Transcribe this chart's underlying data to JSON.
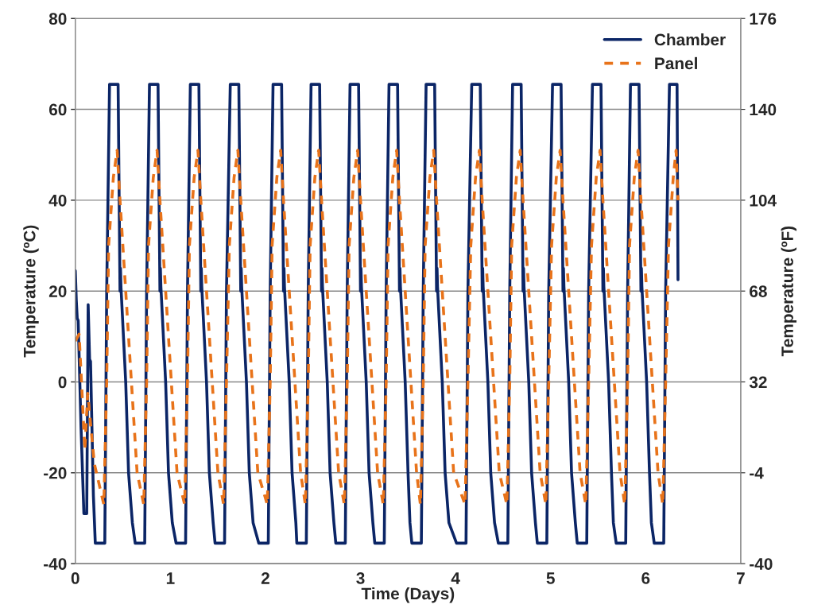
{
  "chart_data": {
    "type": "line",
    "xlabel": "Time (Days)",
    "ylabel": "Temperature (ºC)",
    "y2label": "Temperature (ºF)",
    "xlim": [
      0,
      7
    ],
    "xticks": [
      0,
      1,
      2,
      3,
      4,
      5,
      6,
      7
    ],
    "ylim": [
      -40,
      80
    ],
    "yticks": [
      -40,
      -20,
      0,
      20,
      40,
      60,
      80
    ],
    "y2lim": [
      -40,
      176
    ],
    "y2ticks": [
      -40,
      -4,
      32,
      68,
      104,
      140,
      176
    ],
    "grid": "y",
    "legend": "top right",
    "series": [
      {
        "name": "Chamber",
        "color": "#0b2566",
        "line_style": "solid",
        "x": [
          0,
          0.01,
          0.02,
          0.03,
          0.06,
          0.09,
          0.12,
          0.135,
          0.15,
          0.16,
          0.19,
          0.21,
          0.31,
          0.33,
          0.36,
          0.45,
          0.47,
          0.475,
          0.48,
          0.53,
          0.56,
          0.6,
          0.63,
          0.73,
          0.75,
          0.78,
          0.87,
          0.89,
          0.895,
          0.9,
          0.95,
          0.98,
          1.02,
          1.06,
          1.16,
          1.18,
          1.21,
          1.3,
          1.32,
          1.325,
          1.33,
          1.38,
          1.41,
          1.45,
          1.47,
          1.57,
          1.59,
          1.63,
          1.72,
          1.74,
          1.745,
          1.75,
          1.8,
          1.83,
          1.87,
          1.93,
          2.03,
          2.05,
          2.08,
          2.17,
          2.19,
          2.195,
          2.2,
          2.25,
          2.28,
          2.32,
          2.33,
          2.43,
          2.45,
          2.48,
          2.57,
          2.59,
          2.595,
          2.6,
          2.65,
          2.68,
          2.72,
          2.74,
          2.84,
          2.86,
          2.89,
          2.98,
          3.0,
          3.005,
          3.01,
          3.06,
          3.09,
          3.13,
          3.15,
          3.25,
          3.27,
          3.3,
          3.39,
          3.41,
          3.415,
          3.42,
          3.47,
          3.5,
          3.52,
          3.54,
          3.64,
          3.66,
          3.69,
          3.78,
          3.8,
          3.805,
          3.81,
          3.86,
          3.89,
          3.93,
          4.01,
          4.11,
          4.13,
          4.17,
          4.26,
          4.28,
          4.285,
          4.29,
          4.34,
          4.37,
          4.41,
          4.45,
          4.55,
          4.57,
          4.6,
          4.69,
          4.71,
          4.715,
          4.72,
          4.77,
          4.8,
          4.84,
          4.86,
          4.96,
          4.98,
          5.02,
          5.11,
          5.13,
          5.135,
          5.14,
          5.19,
          5.22,
          5.26,
          5.28,
          5.38,
          5.4,
          5.44,
          5.53,
          5.55,
          5.555,
          5.56,
          5.61,
          5.64,
          5.66,
          5.69,
          5.79,
          5.81,
          5.84,
          5.93,
          5.95,
          5.955,
          5.96,
          6.01,
          6.04,
          6.06,
          6.09,
          6.19,
          6.21,
          6.25,
          6.33,
          6.34
        ],
        "values": [
          24.5,
          18,
          14,
          13.5,
          -10,
          -29,
          -29,
          17,
          5,
          4.5,
          -25,
          -35.5,
          -35.5,
          20,
          65.5,
          65.5,
          20,
          25,
          21,
          0,
          -20,
          -31,
          -35.5,
          -35.5,
          20,
          65.5,
          65.5,
          20,
          25,
          21,
          0,
          -20,
          -31,
          -35.5,
          -35.5,
          20,
          65.5,
          65.5,
          20,
          25,
          21,
          0,
          -20,
          -31,
          -35.5,
          -35.5,
          20,
          65.5,
          65.5,
          20,
          25,
          21,
          0,
          -20,
          -31,
          -35.5,
          -35.5,
          20,
          65.5,
          65.5,
          20,
          25,
          21,
          0,
          -20,
          -31,
          -35.5,
          -35.5,
          20,
          65.5,
          65.5,
          20,
          25,
          21,
          0,
          -20,
          -31,
          -35.5,
          -35.5,
          20,
          65.5,
          65.5,
          20,
          25,
          21,
          0,
          -20,
          -31,
          -35.5,
          -35.5,
          20,
          65.5,
          65.5,
          20,
          25,
          21,
          0,
          -20,
          -31,
          -35.5,
          -35.5,
          20,
          65.5,
          65.5,
          20,
          25,
          21,
          0,
          -20,
          -31,
          -35.5,
          -35.5,
          20,
          65.5,
          65.5,
          20,
          25,
          21,
          0,
          -20,
          -31,
          -35.5,
          -35.5,
          20,
          65.5,
          65.5,
          20,
          25,
          21,
          0,
          -20,
          -31,
          -35.5,
          -35.5,
          20,
          65.5,
          65.5,
          20,
          25,
          21,
          0,
          -20,
          -31,
          -35.5,
          -35.5,
          20,
          65.5,
          65.5,
          20,
          25,
          21,
          0,
          -20,
          -31,
          -35.5,
          -35.5,
          20,
          65.5,
          65.5,
          20,
          25,
          21,
          0,
          -20,
          -31,
          -35.5,
          -35.5,
          20,
          65.5,
          65.5,
          22.5
        ]
      },
      {
        "name": "Panel",
        "color": "#e8731a",
        "line_style": "dashed",
        "x": [
          0,
          0.04,
          0.1,
          0.13,
          0.2,
          0.3,
          0.33,
          0.35,
          0.4,
          0.44,
          0.47,
          0.53,
          0.59,
          0.65,
          0.72,
          0.75,
          0.77,
          0.82,
          0.86,
          0.89,
          0.95,
          1.01,
          1.07,
          1.15,
          1.18,
          1.2,
          1.25,
          1.29,
          1.32,
          1.38,
          1.44,
          1.5,
          1.56,
          1.59,
          1.62,
          1.67,
          1.71,
          1.74,
          1.8,
          1.86,
          1.92,
          2.02,
          2.05,
          2.07,
          2.12,
          2.16,
          2.19,
          2.25,
          2.31,
          2.37,
          2.42,
          2.45,
          2.47,
          2.52,
          2.56,
          2.59,
          2.65,
          2.71,
          2.77,
          2.83,
          2.86,
          2.88,
          2.93,
          2.97,
          3.0,
          3.06,
          3.12,
          3.18,
          3.24,
          3.27,
          3.29,
          3.34,
          3.38,
          3.41,
          3.47,
          3.53,
          3.59,
          3.63,
          3.66,
          3.68,
          3.73,
          3.77,
          3.8,
          3.86,
          3.92,
          3.98,
          4.1,
          4.13,
          4.16,
          4.21,
          4.25,
          4.28,
          4.34,
          4.4,
          4.46,
          4.54,
          4.57,
          4.59,
          4.64,
          4.68,
          4.71,
          4.77,
          4.83,
          4.89,
          4.95,
          4.98,
          5.01,
          5.06,
          5.1,
          5.13,
          5.19,
          5.25,
          5.31,
          5.37,
          5.4,
          5.43,
          5.48,
          5.52,
          5.55,
          5.61,
          5.67,
          5.73,
          5.78,
          5.81,
          5.83,
          5.88,
          5.92,
          5.95,
          6.01,
          6.07,
          6.13,
          6.18,
          6.21,
          6.24,
          6.29,
          6.32,
          6.34
        ],
        "values": [
          9,
          10.5,
          -15,
          -2.5,
          -18,
          -27,
          0,
          30,
          45,
          51,
          40,
          20,
          0,
          -20,
          -27,
          0,
          30,
          45,
          51,
          40,
          20,
          0,
          -20,
          -27,
          0,
          30,
          45,
          51,
          40,
          20,
          0,
          -20,
          -27,
          0,
          30,
          45,
          51,
          40,
          20,
          0,
          -20,
          -27,
          0,
          30,
          45,
          51,
          40,
          20,
          0,
          -20,
          -27,
          0,
          30,
          45,
          51,
          40,
          20,
          0,
          -20,
          -27,
          0,
          30,
          45,
          51,
          40,
          20,
          0,
          -20,
          -27,
          0,
          30,
          45,
          51,
          40,
          20,
          0,
          -20,
          -27,
          0,
          30,
          45,
          51,
          40,
          20,
          0,
          -20,
          -27,
          0,
          30,
          45,
          51,
          40,
          20,
          0,
          -20,
          -27,
          0,
          30,
          45,
          51,
          40,
          20,
          0,
          -20,
          -27,
          0,
          30,
          45,
          51,
          40,
          20,
          0,
          -20,
          -27,
          0,
          30,
          45,
          51,
          40,
          20,
          0,
          -20,
          -27,
          0,
          30,
          45,
          51,
          40,
          20,
          0,
          -20,
          -27,
          0,
          30,
          45,
          51,
          40
        ]
      }
    ]
  }
}
